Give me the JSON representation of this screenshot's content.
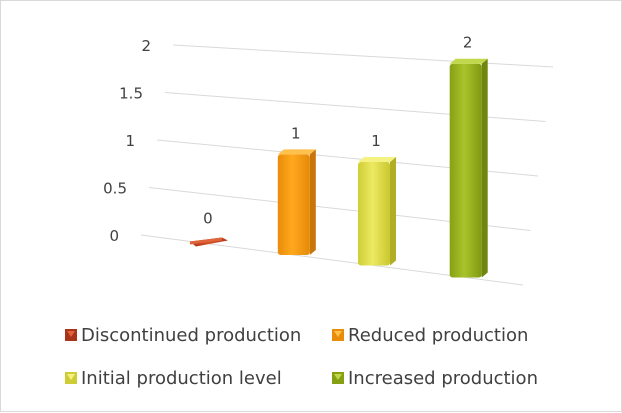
{
  "chart_data": {
    "type": "bar",
    "style": "3d-column",
    "categories": [
      "Discontinued production",
      "Reduced production",
      "Initial production level",
      "Increased production"
    ],
    "values": [
      0,
      1,
      1,
      2
    ],
    "data_labels": [
      "0",
      "1",
      "1",
      "2"
    ],
    "y_ticks": [
      "0",
      "0.5",
      "1",
      "1.5",
      "2"
    ],
    "ylim": [
      0,
      2
    ],
    "grid": true,
    "legend_position": "bottom",
    "title": "",
    "xlabel": "",
    "ylabel": "",
    "colors": {
      "Discontinued production": "#c8441e",
      "Reduced production": "#f39c12",
      "Initial production level": "#dddc45",
      "Increased production": "#9ab41e"
    }
  }
}
